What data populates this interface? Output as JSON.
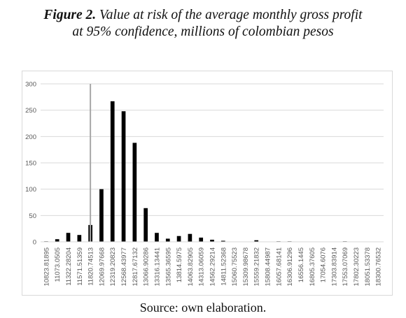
{
  "caption": {
    "label": "Figure 2.",
    "line1_rest": "Value at risk of the average monthly gross profit",
    "line2": "at 95% confidence, millions of colombian pesos"
  },
  "source": "Source: own elaboration.",
  "chart_data": {
    "type": "bar",
    "categories": [
      "10823.81895",
      "11073.0505",
      "11322.28204",
      "11571.51359",
      "11820.74513",
      "12069.97668",
      "12319.20823",
      "12568.43977",
      "12817.67132",
      "13066.90286",
      "13316.13441",
      "13565.36595",
      "13814.5975",
      "14063.82905",
      "14313.06059",
      "14562.29214",
      "14811.52368",
      "15060.75523",
      "15309.98678",
      "15559.21832",
      "15808.44987",
      "16057.68141",
      "16306.91296",
      "16556.1445",
      "16805.37605",
      "17054.6076",
      "17303.83914",
      "17553.07069",
      "17802.30223",
      "18051.53378",
      "18300.76532"
    ],
    "values": [
      1,
      5,
      17,
      13,
      32,
      100,
      267,
      248,
      188,
      64,
      17,
      6,
      11,
      15,
      8,
      4,
      2,
      0,
      0,
      3,
      0,
      1,
      1,
      0,
      0,
      0,
      0,
      1,
      0,
      0,
      0
    ],
    "ylim": [
      0,
      300
    ],
    "yticks": [
      0,
      50,
      100,
      150,
      200,
      250,
      300
    ],
    "grid": true,
    "var_line_category_index": 4,
    "colors": {
      "bar": "#000000",
      "var_line": "#a6a6a6",
      "grid": "#d9d9d9"
    }
  }
}
